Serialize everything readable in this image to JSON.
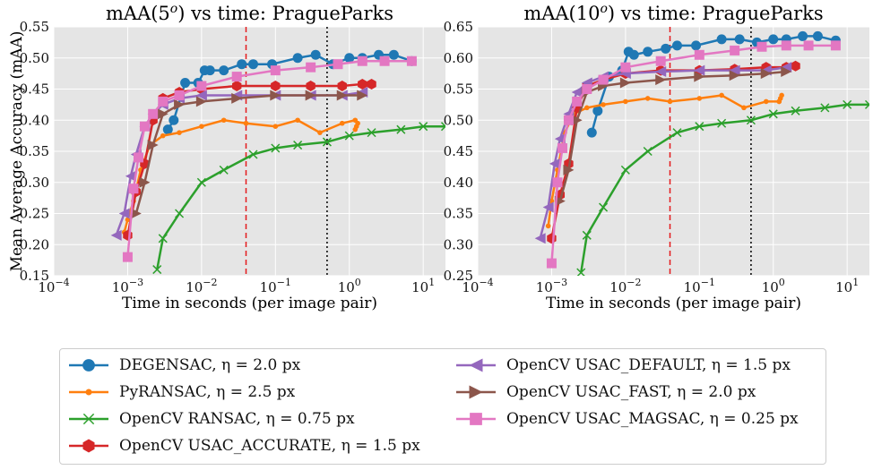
{
  "chart_data": [
    {
      "type": "line",
      "title": "mAA(5°) vs time: PragueParks",
      "title_main": "mAA(5",
      "title_sup": "o",
      "title_rest": ") vs time: PragueParks",
      "xlabel": "Time in seconds (per image pair)",
      "ylabel": "Mean Average Accuracy (mAA)",
      "xscale": "log",
      "xlim": [
        0.0001,
        20
      ],
      "ylim": [
        0.15,
        0.55
      ],
      "xticks": [
        {
          "value": 0.0001,
          "base": "10",
          "exp": "−4"
        },
        {
          "value": 0.001,
          "base": "10",
          "exp": "−3"
        },
        {
          "value": 0.01,
          "base": "10",
          "exp": "−2"
        },
        {
          "value": 0.1,
          "base": "10",
          "exp": "−1"
        },
        {
          "value": 1,
          "base": "10",
          "exp": "0"
        },
        {
          "value": 10,
          "base": "10",
          "exp": "1"
        }
      ],
      "yticks": [
        {
          "value": 0.15,
          "label": "0.15"
        },
        {
          "value": 0.2,
          "label": "0.20"
        },
        {
          "value": 0.25,
          "label": "0.25"
        },
        {
          "value": 0.3,
          "label": "0.30"
        },
        {
          "value": 0.35,
          "label": "0.35"
        },
        {
          "value": 0.4,
          "label": "0.40"
        },
        {
          "value": 0.45,
          "label": "0.45"
        },
        {
          "value": 0.5,
          "label": "0.50"
        },
        {
          "value": 0.55,
          "label": "0.55"
        }
      ],
      "grid": true,
      "vlines": [
        {
          "x": 0.04,
          "color": "#e41a1c",
          "style": "dashed"
        },
        {
          "x": 0.5,
          "color": "#000000",
          "style": "dotted"
        }
      ],
      "series": [
        {
          "key": "degensac",
          "x": [
            0.0035,
            0.0042,
            0.006,
            0.009,
            0.011,
            0.013,
            0.02,
            0.035,
            0.05,
            0.09,
            0.2,
            0.35,
            0.6,
            1.0,
            1.5,
            2.5,
            4,
            7
          ],
          "y": [
            0.385,
            0.4,
            0.46,
            0.46,
            0.48,
            0.48,
            0.48,
            0.49,
            0.49,
            0.49,
            0.5,
            0.505,
            0.49,
            0.5,
            0.5,
            0.505,
            0.505,
            0.495
          ]
        },
        {
          "key": "pyransac",
          "x": [
            0.0009,
            0.001,
            0.0012,
            0.0015,
            0.002,
            0.003,
            0.005,
            0.01,
            0.02,
            0.04,
            0.1,
            0.2,
            0.4,
            0.8,
            1.2,
            1.3,
            1.25,
            1.2
          ],
          "y": [
            0.22,
            0.24,
            0.27,
            0.32,
            0.36,
            0.375,
            0.38,
            0.39,
            0.4,
            0.395,
            0.39,
            0.4,
            0.38,
            0.395,
            0.4,
            0.395,
            0.39,
            0.385
          ]
        },
        {
          "key": "opencv-ransac",
          "x": [
            0.0025,
            0.003,
            0.005,
            0.01,
            0.02,
            0.05,
            0.1,
            0.2,
            0.5,
            1,
            2,
            5,
            10,
            20
          ],
          "y": [
            0.16,
            0.21,
            0.25,
            0.3,
            0.32,
            0.345,
            0.355,
            0.36,
            0.365,
            0.375,
            0.38,
            0.385,
            0.39,
            0.39
          ]
        },
        {
          "key": "usac-accurate",
          "x": [
            0.001,
            0.0013,
            0.0017,
            0.0022,
            0.003,
            0.005,
            0.01,
            0.03,
            0.1,
            0.3,
            0.8,
            1.5,
            2
          ],
          "y": [
            0.215,
            0.285,
            0.33,
            0.4,
            0.435,
            0.445,
            0.45,
            0.455,
            0.455,
            0.455,
            0.455,
            0.458,
            0.458
          ]
        },
        {
          "key": "usac-default",
          "x": [
            0.0007,
            0.0009,
            0.0011,
            0.0013,
            0.0017,
            0.0022,
            0.003,
            0.005,
            0.01,
            0.03,
            0.1,
            0.3,
            0.8,
            1.5
          ],
          "y": [
            0.215,
            0.25,
            0.31,
            0.345,
            0.39,
            0.41,
            0.425,
            0.435,
            0.44,
            0.44,
            0.44,
            0.44,
            0.44,
            0.445
          ]
        },
        {
          "key": "usac-fast",
          "x": [
            0.0013,
            0.0017,
            0.0022,
            0.003,
            0.005,
            0.01,
            0.03,
            0.1,
            0.3,
            0.8,
            1.5
          ],
          "y": [
            0.25,
            0.3,
            0.36,
            0.41,
            0.425,
            0.43,
            0.435,
            0.44,
            0.44,
            0.44,
            0.44
          ]
        },
        {
          "key": "usac-magsac",
          "x": [
            0.001,
            0.0012,
            0.0014,
            0.0017,
            0.0022,
            0.003,
            0.005,
            0.01,
            0.03,
            0.1,
            0.3,
            0.7,
            1.5,
            3,
            7
          ],
          "y": [
            0.18,
            0.29,
            0.34,
            0.39,
            0.41,
            0.43,
            0.44,
            0.455,
            0.47,
            0.48,
            0.485,
            0.49,
            0.495,
            0.495,
            0.495
          ]
        }
      ]
    },
    {
      "type": "line",
      "title": "mAA(10°) vs time: PragueParks",
      "title_main": "mAA(10",
      "title_sup": "o",
      "title_rest": ") vs time: PragueParks",
      "xlabel": "Time in seconds (per image pair)",
      "ylabel": "",
      "xscale": "log",
      "xlim": [
        0.0001,
        20
      ],
      "ylim": [
        0.25,
        0.65
      ],
      "xticks": [
        {
          "value": 0.0001,
          "base": "10",
          "exp": "−4"
        },
        {
          "value": 0.001,
          "base": "10",
          "exp": "−3"
        },
        {
          "value": 0.01,
          "base": "10",
          "exp": "−2"
        },
        {
          "value": 0.1,
          "base": "10",
          "exp": "−1"
        },
        {
          "value": 1,
          "base": "10",
          "exp": "0"
        },
        {
          "value": 10,
          "base": "10",
          "exp": "1"
        }
      ],
      "yticks": [
        {
          "value": 0.25,
          "label": "0.25"
        },
        {
          "value": 0.3,
          "label": "0.30"
        },
        {
          "value": 0.35,
          "label": "0.35"
        },
        {
          "value": 0.4,
          "label": "0.40"
        },
        {
          "value": 0.45,
          "label": "0.45"
        },
        {
          "value": 0.5,
          "label": "0.50"
        },
        {
          "value": 0.55,
          "label": "0.55"
        },
        {
          "value": 0.6,
          "label": "0.60"
        },
        {
          "value": 0.65,
          "label": "0.65"
        }
      ],
      "grid": true,
      "vlines": [
        {
          "x": 0.04,
          "color": "#e41a1c",
          "style": "dashed"
        },
        {
          "x": 0.5,
          "color": "#000000",
          "style": "dotted"
        }
      ],
      "series": [
        {
          "key": "degensac",
          "x": [
            0.0035,
            0.0042,
            0.006,
            0.009,
            0.011,
            0.013,
            0.02,
            0.035,
            0.05,
            0.09,
            0.2,
            0.35,
            0.6,
            1.0,
            1.5,
            2.5,
            4,
            7
          ],
          "y": [
            0.48,
            0.515,
            0.57,
            0.58,
            0.61,
            0.605,
            0.61,
            0.615,
            0.62,
            0.62,
            0.63,
            0.63,
            0.625,
            0.63,
            0.63,
            0.635,
            0.635,
            0.628
          ]
        },
        {
          "key": "pyransac",
          "x": [
            0.0009,
            0.001,
            0.0012,
            0.0015,
            0.002,
            0.003,
            0.005,
            0.01,
            0.02,
            0.04,
            0.1,
            0.2,
            0.4,
            0.8,
            1.2,
            1.3,
            1.25,
            1.2
          ],
          "y": [
            0.33,
            0.37,
            0.42,
            0.48,
            0.51,
            0.52,
            0.525,
            0.53,
            0.535,
            0.53,
            0.535,
            0.54,
            0.52,
            0.53,
            0.53,
            0.54,
            0.535,
            0.53
          ]
        },
        {
          "key": "opencv-ransac",
          "x": [
            0.0025,
            0.003,
            0.005,
            0.01,
            0.02,
            0.05,
            0.1,
            0.2,
            0.5,
            1,
            2,
            5,
            10,
            20
          ],
          "y": [
            0.255,
            0.315,
            0.36,
            0.42,
            0.45,
            0.48,
            0.49,
            0.495,
            0.5,
            0.51,
            0.515,
            0.52,
            0.525,
            0.525
          ]
        },
        {
          "key": "usac-accurate",
          "x": [
            0.001,
            0.0013,
            0.0017,
            0.0022,
            0.003,
            0.005,
            0.01,
            0.03,
            0.1,
            0.3,
            0.8,
            1.5,
            2
          ],
          "y": [
            0.31,
            0.38,
            0.43,
            0.52,
            0.555,
            0.565,
            0.575,
            0.58,
            0.58,
            0.582,
            0.585,
            0.585,
            0.587
          ]
        },
        {
          "key": "usac-default",
          "x": [
            0.0007,
            0.0009,
            0.0011,
            0.0013,
            0.0017,
            0.0022,
            0.003,
            0.005,
            0.01,
            0.03,
            0.1,
            0.3,
            0.8,
            1.5
          ],
          "y": [
            0.31,
            0.36,
            0.43,
            0.47,
            0.51,
            0.545,
            0.56,
            0.57,
            0.575,
            0.578,
            0.58,
            0.58,
            0.58,
            0.585
          ]
        },
        {
          "key": "usac-fast",
          "x": [
            0.0013,
            0.0017,
            0.0022,
            0.003,
            0.005,
            0.01,
            0.03,
            0.1,
            0.3,
            0.8,
            1.5
          ],
          "y": [
            0.37,
            0.42,
            0.5,
            0.545,
            0.555,
            0.56,
            0.565,
            0.57,
            0.572,
            0.575,
            0.578
          ]
        },
        {
          "key": "usac-magsac",
          "x": [
            0.001,
            0.0012,
            0.0014,
            0.0017,
            0.0022,
            0.003,
            0.005,
            0.01,
            0.03,
            0.1,
            0.3,
            0.7,
            1.5,
            3,
            7
          ],
          "y": [
            0.27,
            0.4,
            0.455,
            0.5,
            0.53,
            0.55,
            0.565,
            0.585,
            0.595,
            0.605,
            0.612,
            0.618,
            0.62,
            0.62,
            0.62
          ]
        }
      ]
    }
  ],
  "legend": [
    {
      "key": "degensac",
      "label": "DEGENSAC, η = 2.0 px",
      "color": "#1f78b4",
      "marker": "circle"
    },
    {
      "key": "pyransac",
      "label": "PyRANSAC, η = 2.5 px",
      "color": "#ff7f0e",
      "marker": "dot"
    },
    {
      "key": "opencv-ransac",
      "label": "OpenCV RANSAC, η = 0.75 px",
      "color": "#2ca02c",
      "marker": "x"
    },
    {
      "key": "usac-accurate",
      "label": "OpenCV USAC_ACCURATE, η = 1.5 px",
      "color": "#d62728",
      "marker": "hexagon"
    },
    {
      "key": "usac-default",
      "label": "OpenCV USAC_DEFAULT, η = 1.5 px",
      "color": "#9467bd",
      "marker": "triangle-left"
    },
    {
      "key": "usac-fast",
      "label": "OpenCV USAC_FAST, η = 2.0 px",
      "color": "#8c564b",
      "marker": "triangle-right"
    },
    {
      "key": "usac-magsac",
      "label": "OpenCV USAC_MAGSAC, η = 0.25 px",
      "color": "#e377c2",
      "marker": "square"
    }
  ]
}
